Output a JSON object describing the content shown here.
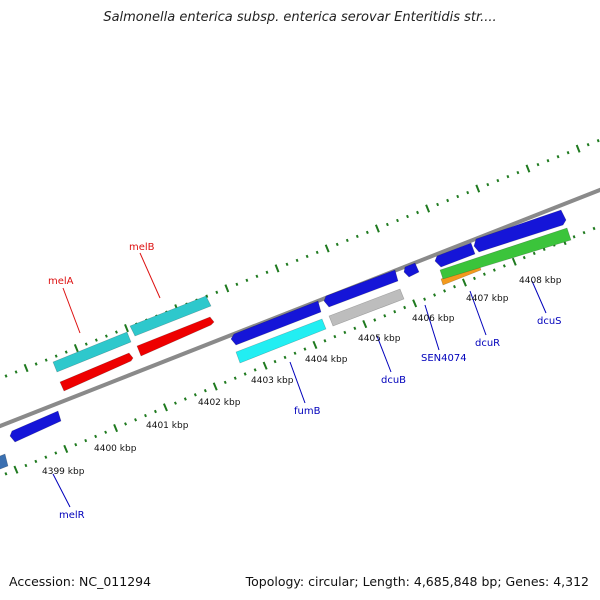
{
  "title": "Salmonella enterica subsp. enterica serovar Enteritidis str....",
  "footer": {
    "accession": "Accession: NC_011294",
    "summary": "Topology: circular; Length: 4,685,848 bp; Genes: 4,312"
  },
  "colors": {
    "backbone": "#8a8a8a",
    "tick": "#1f7a1f",
    "label_red": "#dd1111",
    "label_blue": "#0000bb"
  },
  "scale": {
    "ticks": [
      {
        "label": "4399 kbp"
      },
      {
        "label": "4400 kbp"
      },
      {
        "label": "4401 kbp"
      },
      {
        "label": "4402 kbp"
      },
      {
        "label": "4403 kbp"
      },
      {
        "label": "4404 kbp"
      },
      {
        "label": "4405 kbp"
      },
      {
        "label": "4406 kbp"
      },
      {
        "label": "4407 kbp"
      },
      {
        "label": "4408 kbp"
      }
    ]
  },
  "gene_labels": [
    {
      "name": "melB",
      "color": "red"
    },
    {
      "name": "melA",
      "color": "red"
    },
    {
      "name": "melR",
      "color": "blue"
    },
    {
      "name": "fumB",
      "color": "blue"
    },
    {
      "name": "dcuB",
      "color": "blue"
    },
    {
      "name": "SEN4074",
      "color": "blue"
    },
    {
      "name": "dcuR",
      "color": "blue"
    },
    {
      "name": "dcuS",
      "color": "blue"
    }
  ],
  "features": [
    {
      "id": "melB-cds",
      "color": "#2ec8cc"
    },
    {
      "id": "melB-gene",
      "color": "#ee0000"
    },
    {
      "id": "melA-cds",
      "color": "#2ec8cc"
    },
    {
      "id": "melA-gene",
      "color": "#ee0000"
    },
    {
      "id": "melR-gene",
      "color": "#1515d8"
    },
    {
      "id": "edge-gene",
      "color": "#3a6fb0"
    },
    {
      "id": "fumB-gene",
      "color": "#1515d8"
    },
    {
      "id": "fumB-cds",
      "color": "#22eef2"
    },
    {
      "id": "dcuB-gene",
      "color": "#1515d8"
    },
    {
      "id": "dcuB-pseudo",
      "color": "#bdbdbd"
    },
    {
      "id": "SEN4074-gene",
      "color": "#1515d8"
    },
    {
      "id": "dcuR-gene",
      "color": "#1515d8"
    },
    {
      "id": "dcuR-cds",
      "color": "#f39a1e"
    },
    {
      "id": "dcuS-gene",
      "color": "#1515d8"
    },
    {
      "id": "dcuS-cds",
      "color": "#3bc43b"
    }
  ]
}
